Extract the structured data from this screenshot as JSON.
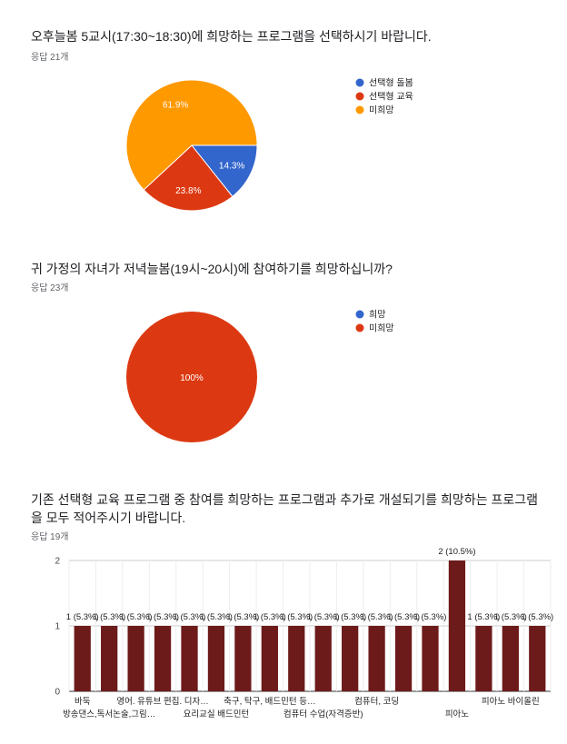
{
  "questions": [
    {
      "title": "오후늘봄 5교시(17:30~18:30)에 희망하는 프로그램을 선택하시기 바랍니다.",
      "responses": "응답 21개"
    },
    {
      "title": "귀 가정의 자녀가 저녁늘봄(19시~20시)에 참여하기를 희망하십니까?",
      "responses": "응답 23개"
    },
    {
      "title": "기존 선택형 교육 프로그램 중 참여를 희망하는 프로그램과 추가로 개설되기를 희망하는 프로그램을 모두 적어주시기 바랍니다.",
      "responses": "응답 19개"
    }
  ],
  "chart_data": [
    {
      "type": "pie",
      "slices": [
        {
          "name": "선택형 돌봄",
          "value": 14.3,
          "label": "14.3%",
          "color": "#3366cc"
        },
        {
          "name": "선택형 교육",
          "value": 23.8,
          "label": "23.8%",
          "color": "#dc3912"
        },
        {
          "name": "미희망",
          "value": 61.9,
          "label": "61.9%",
          "color": "#ff9900"
        }
      ],
      "legend_position": "right"
    },
    {
      "type": "pie",
      "slices": [
        {
          "name": "희망",
          "value": 0,
          "label": "",
          "color": "#3366cc"
        },
        {
          "name": "미희망",
          "value": 100,
          "label": "100%",
          "color": "#dc3912"
        }
      ],
      "legend_position": "right"
    },
    {
      "type": "bar",
      "color": "#6d1a1a",
      "ylim": [
        0,
        2
      ],
      "yticks": [
        "0",
        "1",
        "2"
      ],
      "grid": true,
      "values": [
        1,
        1,
        1,
        1,
        1,
        1,
        1,
        1,
        1,
        1,
        1,
        1,
        1,
        1,
        2,
        1,
        1,
        1
      ],
      "bar_labels": [
        "1 (5.3%)",
        "1 (5.3%)",
        "1 (5.3%)",
        "1 (5.3%)",
        "1 (5.3%)",
        "1 (5.3%)",
        "1 (5.3%)",
        "1 (5.3%)",
        "1 (5.3%)",
        "1 (5.3%)",
        "1 (5.3%)",
        "1 (5.3%)",
        "1 (5.3%)",
        "1 (5.3%)",
        "2 (10.5%)",
        "1 (5.3%)",
        "1 (5.3%)",
        "1 (5.3%)"
      ],
      "categories": [
        {
          "label": "바둑",
          "row": 0
        },
        {
          "label": "방송댄스,독서논술,그림…",
          "row": 1
        },
        {
          "label": "",
          "row": 0
        },
        {
          "label": "영어. 유튜브 편집. 디자…",
          "row": 0
        },
        {
          "label": "",
          "row": 1
        },
        {
          "label": "요리교실 배드민턴",
          "row": 1
        },
        {
          "label": "",
          "row": 0
        },
        {
          "label": "축구, 탁구, 배드민턴 등…",
          "row": 0
        },
        {
          "label": "",
          "row": 1
        },
        {
          "label": "컴퓨터 수업(자격증반)",
          "row": 1
        },
        {
          "label": "",
          "row": 0
        },
        {
          "label": "컴퓨터, 코딩",
          "row": 0
        },
        {
          "label": "",
          "row": 1
        },
        {
          "label": "",
          "row": 0
        },
        {
          "label": "피아노",
          "row": 1
        },
        {
          "label": "",
          "row": 0
        },
        {
          "label": "피아노 바이올린",
          "row": 0
        },
        {
          "label": "",
          "row": 1
        }
      ]
    }
  ]
}
